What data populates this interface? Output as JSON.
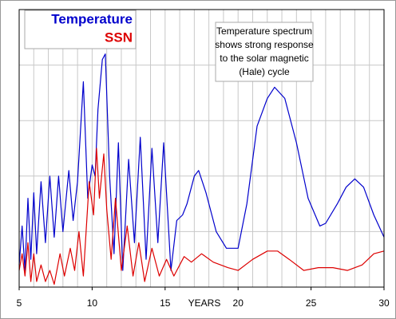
{
  "chart_data": {
    "type": "line",
    "xlabel": "YEARS",
    "annotation": [
      "Temperature spectrum",
      "shows strong response",
      "to the solar magnetic",
      "(Hale) cycle"
    ],
    "xlim": [
      5,
      30
    ],
    "xticks": [
      5,
      10,
      15,
      20,
      25,
      30
    ],
    "ylim": [
      0,
      5
    ],
    "yticks": [
      1,
      2,
      3,
      4
    ],
    "grid": true,
    "legend": "upper left",
    "series": [
      {
        "name": "Temperature",
        "color": "#0000cc",
        "x": [
          5.0,
          5.2,
          5.4,
          5.6,
          5.8,
          6.0,
          6.2,
          6.5,
          6.8,
          7.1,
          7.4,
          7.7,
          8.0,
          8.4,
          8.7,
          9.0,
          9.4,
          9.7,
          10.0,
          10.2,
          10.4,
          10.7,
          10.9,
          11.2,
          11.5,
          11.8,
          12.1,
          12.5,
          12.9,
          13.3,
          13.7,
          14.1,
          14.5,
          14.9,
          15.4,
          15.8,
          16.2,
          16.5,
          17.0,
          17.3,
          17.8,
          18.5,
          19.2,
          20.0,
          20.6,
          21.3,
          22.0,
          22.5,
          23.2,
          24.0,
          24.8,
          25.6,
          26.0,
          26.8,
          27.4,
          28.0,
          28.6,
          29.3,
          30.0
        ],
        "values": [
          0.4,
          1.1,
          0.3,
          1.6,
          0.5,
          1.7,
          0.6,
          1.9,
          0.8,
          2.0,
          0.9,
          2.0,
          1.0,
          2.1,
          1.2,
          1.9,
          3.7,
          1.6,
          2.2,
          2.0,
          3.2,
          4.1,
          4.2,
          2.0,
          0.6,
          2.6,
          0.3,
          2.3,
          0.8,
          2.7,
          0.5,
          2.5,
          0.8,
          2.6,
          0.3,
          1.2,
          1.3,
          1.5,
          2.0,
          2.1,
          1.7,
          1.0,
          0.7,
          0.7,
          1.5,
          2.9,
          3.4,
          3.6,
          3.4,
          2.6,
          1.6,
          1.1,
          1.15,
          1.5,
          1.8,
          1.95,
          1.8,
          1.3,
          0.9
        ]
      },
      {
        "name": "SSN",
        "color": "#dd0000",
        "x": [
          5.0,
          5.2,
          5.4,
          5.6,
          5.8,
          6.0,
          6.2,
          6.5,
          6.8,
          7.1,
          7.4,
          7.8,
          8.1,
          8.5,
          8.8,
          9.1,
          9.4,
          9.8,
          10.1,
          10.3,
          10.5,
          10.8,
          11.0,
          11.3,
          11.6,
          12.0,
          12.4,
          12.8,
          13.2,
          13.6,
          14.1,
          14.6,
          15.1,
          15.6,
          16.3,
          16.8,
          17.5,
          18.3,
          19.3,
          20.0,
          21.0,
          22.0,
          22.7,
          23.5,
          24.5,
          25.5,
          26.5,
          27.5,
          28.5,
          29.3,
          30.0
        ],
        "values": [
          0.3,
          0.6,
          0.2,
          0.8,
          0.1,
          0.6,
          0.1,
          0.4,
          0.1,
          0.3,
          0.05,
          0.6,
          0.2,
          0.7,
          0.3,
          1.0,
          0.2,
          1.9,
          1.3,
          2.5,
          1.6,
          2.4,
          1.4,
          0.5,
          1.6,
          0.3,
          1.1,
          0.2,
          0.8,
          0.1,
          0.7,
          0.2,
          0.5,
          0.2,
          0.55,
          0.45,
          0.6,
          0.45,
          0.35,
          0.3,
          0.5,
          0.65,
          0.65,
          0.5,
          0.3,
          0.35,
          0.35,
          0.3,
          0.4,
          0.6,
          0.65
        ]
      }
    ]
  }
}
